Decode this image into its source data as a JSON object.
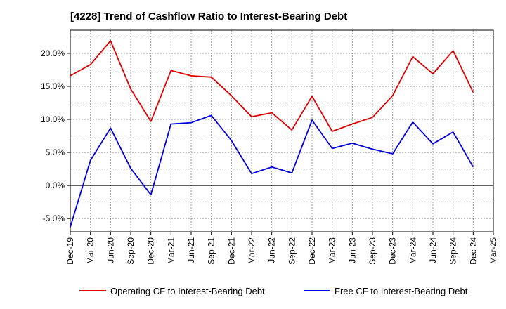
{
  "chart_data": {
    "type": "line",
    "title": "[4228]  Trend of Cashflow Ratio to Interest-Bearing Debt",
    "xlabel": "",
    "ylabel": "",
    "categories": [
      "Dec-19",
      "Mar-20",
      "Jun-20",
      "Sep-20",
      "Dec-20",
      "Mar-21",
      "Jun-21",
      "Sep-21",
      "Dec-21",
      "Mar-22",
      "Jun-22",
      "Sep-22",
      "Dec-22",
      "Mar-23",
      "Jun-23",
      "Sep-23",
      "Dec-23",
      "Mar-24",
      "Jun-24",
      "Sep-24",
      "Dec-24",
      "Mar-25"
    ],
    "ylim": [
      -7,
      23.5
    ],
    "yticks": [
      -5,
      0,
      5,
      10,
      15,
      20
    ],
    "ytick_labels": [
      "-5.0%",
      "0.0%",
      "5.0%",
      "10.0%",
      "15.0%",
      "20.0%"
    ],
    "grid": true,
    "legend_position": "bottom",
    "series": [
      {
        "name": "Operating CF to Interest-Bearing Debt",
        "color": "#e00000",
        "values": [
          16.6,
          18.3,
          21.9,
          14.6,
          9.7,
          17.4,
          16.6,
          16.4,
          13.6,
          10.4,
          11.0,
          8.4,
          13.5,
          8.2,
          9.3,
          10.3,
          13.6,
          19.5,
          16.9,
          20.4,
          14.1,
          null
        ]
      },
      {
        "name": "Free CF to Interest-Bearing Debt",
        "color": "#0000e0",
        "values": [
          -6.3,
          3.8,
          8.7,
          2.6,
          -1.4,
          9.3,
          9.5,
          10.6,
          6.8,
          1.8,
          2.8,
          1.9,
          9.9,
          5.6,
          6.4,
          5.5,
          4.8,
          9.6,
          6.3,
          8.1,
          2.8,
          null
        ]
      }
    ]
  }
}
